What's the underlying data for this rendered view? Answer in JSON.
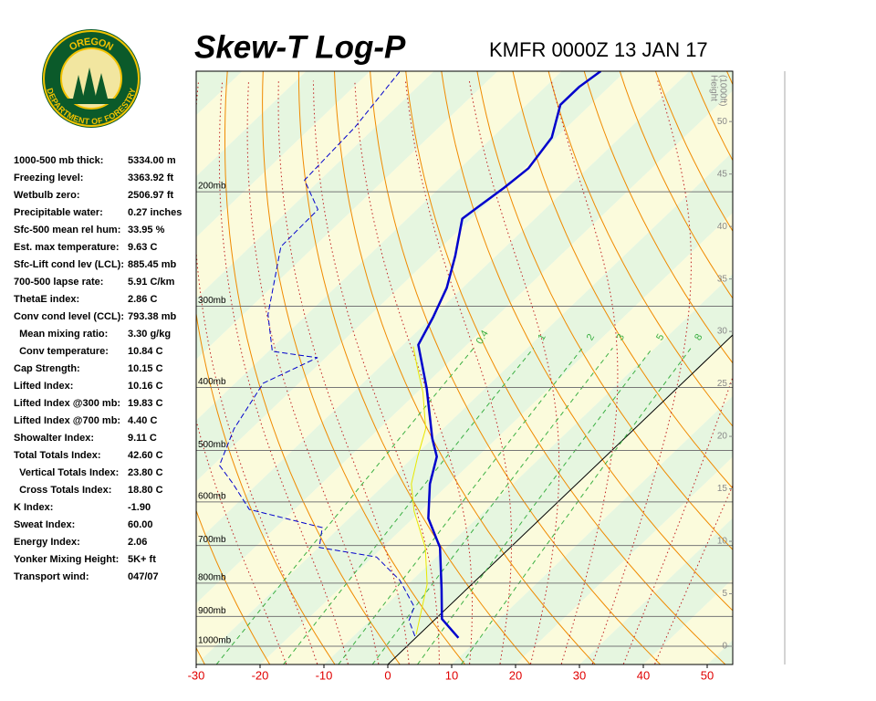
{
  "chart_data": {
    "type": "skew-t",
    "title": "Skew-T Log-P",
    "subtitle": "KMFR 0000Z 13 JAN 17",
    "xlim": [
      -30,
      54
    ],
    "xticks": [
      -30,
      -20,
      -10,
      0,
      10,
      20,
      30,
      40,
      50
    ],
    "ylim": [
      1067,
      130.5
    ],
    "log_y": true,
    "yticks": [
      {
        "value": 1000,
        "label": "1000mb"
      },
      {
        "value": 900,
        "label": "900mb"
      },
      {
        "value": 800,
        "label": "800mb"
      },
      {
        "value": 700,
        "label": "700mb"
      },
      {
        "value": 600,
        "label": "600mb"
      },
      {
        "value": 500,
        "label": "500mb"
      },
      {
        "value": 400,
        "label": "400mb"
      },
      {
        "value": 300,
        "label": "300mb"
      },
      {
        "value": 200,
        "label": "200mb"
      }
    ],
    "y2label": [
      "Height",
      "(1000ft)"
    ],
    "y2lim": [
      -1.74,
      54.8
    ],
    "y2ticks": [
      0,
      5,
      10,
      15,
      20,
      25,
      30,
      35,
      40,
      45,
      50
    ],
    "mixing_ratios": [
      0.4,
      1,
      2,
      3,
      5,
      8
    ],
    "series": [
      {
        "color": "#0000cc",
        "width": 2.5,
        "dashed": false,
        "x": [
          6.7,
          1.0,
          -4.0,
          -11.0,
          -17.6,
          -23.0,
          -26.4,
          -30.1,
          -39.2,
          -47.6,
          -49.8,
          -52.5,
          -56.4,
          -61.4,
          -60.8,
          -59.9,
          -59.3,
          -60.7,
          -64.7,
          -64.7,
          -63.9
        ],
        "values": [
          971,
          908,
          816,
          705,
          636,
          563,
          511,
          479,
          401,
          344,
          312,
          281,
          251,
          220,
          210,
          197,
          184,
          165,
          147,
          138,
          130.5
        ]
      },
      {
        "color": "#0000cc",
        "width": 1,
        "dashed": true,
        "x": [
          -0.4,
          -3.9,
          -5.3,
          -11.9,
          -19.4,
          -29.9,
          -32.7,
          -47.1,
          -53.8,
          -59.0,
          -62.7,
          -65.6,
          -61.3,
          -69.4,
          -76.1,
          -85.2,
          -85.5,
          -92.4,
          -93.2,
          -95.3
        ],
        "values": [
          965,
          913,
          870,
          792,
          729,
          705,
          657,
          616,
          563,
          527,
          463,
          394,
          360,
          352,
          309,
          243,
          213,
          192,
          159,
          130.5
        ]
      },
      {
        "color": "#e8e800",
        "width": 1,
        "dashed": false,
        "x": [
          -0.5,
          -7.0,
          -13.3,
          -21.0,
          -25.9,
          -29.4,
          -32.7,
          -39.1,
          -44.6,
          -48.1
        ],
        "values": [
          959,
          803,
          705,
          620,
          563,
          511,
          463,
          407,
          369,
          346
        ]
      }
    ]
  },
  "logo": {
    "top": "OREGON",
    "bottom": "DEPARTMENT OF FORESTRY"
  },
  "indices": [
    [
      "1000-500 mb thick:",
      "5334.00 m"
    ],
    [
      "Freezing level:",
      "3363.92 ft"
    ],
    [
      "Wetbulb zero:",
      "2506.97 ft"
    ],
    [
      "Precipitable water:",
      "0.27 inches"
    ],
    [
      "Sfc-500 mean rel hum:",
      "33.95 %"
    ],
    [
      "Est. max temperature:",
      "9.63 C"
    ],
    [
      "Sfc-Lift cond lev (LCL):",
      "885.45 mb"
    ],
    [
      "700-500 lapse rate:",
      "5.91 C/km"
    ],
    [
      "ThetaE index:",
      "2.86 C"
    ],
    [
      "Conv cond level (CCL):",
      "793.38 mb"
    ],
    [
      "  Mean mixing ratio:",
      "3.30 g/kg"
    ],
    [
      "  Conv temperature:",
      "10.84 C"
    ],
    [
      "Cap Strength:",
      "10.15 C"
    ],
    [
      "Lifted Index:",
      "10.16 C"
    ],
    [
      "Lifted Index @300 mb:",
      "19.83 C"
    ],
    [
      "Lifted Index @700 mb:",
      "4.40 C"
    ],
    [
      "Showalter Index:",
      "9.11 C"
    ],
    [
      "Total Totals Index:",
      "42.60 C"
    ],
    [
      "  Vertical Totals Index:",
      "23.80 C"
    ],
    [
      "  Cross Totals Index:",
      "18.80 C"
    ],
    [
      "K Index:",
      "-1.90"
    ],
    [
      "Sweat Index:",
      "60.00"
    ],
    [
      "Energy Index:",
      "2.06"
    ],
    [
      "Yonker Mixing Height:",
      "5K+ ft"
    ],
    [
      "Transport wind:",
      "047/07"
    ]
  ]
}
